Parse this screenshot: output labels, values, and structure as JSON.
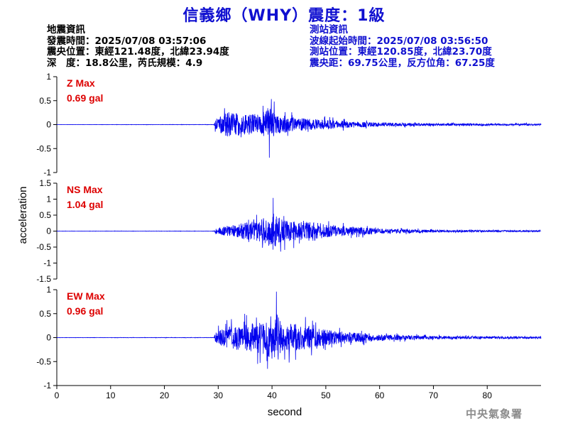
{
  "header": {
    "title": "信義鄉（WHY）震度：1級"
  },
  "event_info": {
    "heading": "地震資訊",
    "origin_time": "發震時間：2025/07/08 03:57:06",
    "epicenter": "震央位置：東經121.48度，北緯23.94度",
    "depth_magnitude": "深　度：18.8公里，芮氏規模：4.9"
  },
  "station_info": {
    "heading": "測站資訊",
    "wave_start": "波線起始時間：2025/07/08 03:56:50",
    "location": "測站位置：東經120.85度，北緯23.70度",
    "distance": "震央距：69.75公里，反方位角：67.25度"
  },
  "footer": {
    "agency": "中央氣象署"
  },
  "colors": {
    "trace": "#0000ee",
    "annotation": "#dd0000",
    "axis": "#000000"
  },
  "chart_data": [
    {
      "type": "line",
      "component": "Z",
      "max_label": "Z Max",
      "max_value": "0.69 gal",
      "xlim": [
        0,
        90
      ],
      "ylim": [
        -1,
        1
      ],
      "yticks": [
        -1,
        -0.5,
        0,
        0.5,
        1
      ],
      "ytick_labels": [
        "-1",
        "-0.5",
        "0",
        "0.5",
        "1"
      ],
      "peak": 0.69,
      "peak_time": 39.5,
      "onset": 29.3,
      "envelope": [
        [
          0,
          0.004
        ],
        [
          29.2,
          0.006
        ],
        [
          29.5,
          0.2
        ],
        [
          31,
          0.42
        ],
        [
          32,
          0.5
        ],
        [
          33,
          0.45
        ],
        [
          35,
          0.38
        ],
        [
          37,
          0.4
        ],
        [
          38,
          0.35
        ],
        [
          39.5,
          0.69
        ],
        [
          41,
          0.35
        ],
        [
          43,
          0.28
        ],
        [
          45,
          0.25
        ],
        [
          48,
          0.2
        ],
        [
          52,
          0.15
        ],
        [
          56,
          0.11
        ],
        [
          60,
          0.08
        ],
        [
          65,
          0.06
        ],
        [
          70,
          0.045
        ],
        [
          80,
          0.035
        ],
        [
          90,
          0.03
        ]
      ]
    },
    {
      "type": "line",
      "component": "NS",
      "max_label": "NS Max",
      "max_value": "1.04 gal",
      "xlim": [
        0,
        90
      ],
      "ylim": [
        -1.5,
        1.5
      ],
      "yticks": [
        -1.5,
        -1,
        -0.5,
        0,
        0.5,
        1,
        1.5
      ],
      "ytick_labels": [
        "-1.5",
        "-1",
        "-0.5",
        "0",
        "0.5",
        "1",
        "1.5"
      ],
      "peak": 1.04,
      "peak_time": 40.2,
      "onset": 29.3,
      "envelope": [
        [
          0,
          0.006
        ],
        [
          29.2,
          0.008
        ],
        [
          29.5,
          0.15
        ],
        [
          31,
          0.25
        ],
        [
          33,
          0.35
        ],
        [
          35,
          0.5
        ],
        [
          37,
          0.55
        ],
        [
          38.5,
          0.75
        ],
        [
          40.2,
          1.04
        ],
        [
          42,
          0.65
        ],
        [
          44,
          0.55
        ],
        [
          46,
          0.5
        ],
        [
          47,
          0.6
        ],
        [
          50,
          0.35
        ],
        [
          55,
          0.25
        ],
        [
          60,
          0.15
        ],
        [
          65,
          0.1
        ],
        [
          70,
          0.07
        ],
        [
          80,
          0.05
        ],
        [
          90,
          0.04
        ]
      ]
    },
    {
      "type": "line",
      "component": "EW",
      "max_label": "EW Max",
      "max_value": "0.96 gal",
      "xlim": [
        0,
        90
      ],
      "ylim": [
        -1,
        1
      ],
      "yticks": [
        -1,
        -0.5,
        0,
        0.5,
        1
      ],
      "ytick_labels": [
        "-1",
        "-0.5",
        "0",
        "0.5",
        "1"
      ],
      "peak": 0.96,
      "peak_time": 40.8,
      "onset": 29.3,
      "envelope": [
        [
          0,
          0.005
        ],
        [
          29.2,
          0.007
        ],
        [
          29.5,
          0.2
        ],
        [
          31,
          0.35
        ],
        [
          33,
          0.45
        ],
        [
          35,
          0.5
        ],
        [
          37,
          0.55
        ],
        [
          38.5,
          0.65
        ],
        [
          40.8,
          0.96
        ],
        [
          42,
          0.6
        ],
        [
          43,
          0.55
        ],
        [
          45,
          0.5
        ],
        [
          48,
          0.35
        ],
        [
          52,
          0.25
        ],
        [
          56,
          0.18
        ],
        [
          60,
          0.12
        ],
        [
          65,
          0.08
        ],
        [
          70,
          0.06
        ],
        [
          80,
          0.045
        ],
        [
          90,
          0.04
        ]
      ]
    }
  ],
  "axes": {
    "xlabel": "second",
    "ylabel": "acceleration",
    "xticks": [
      0,
      10,
      20,
      30,
      40,
      50,
      60,
      70,
      80
    ],
    "xtick_labels": [
      "0",
      "10",
      "20",
      "30",
      "40",
      "50",
      "60",
      "70",
      "80"
    ]
  }
}
